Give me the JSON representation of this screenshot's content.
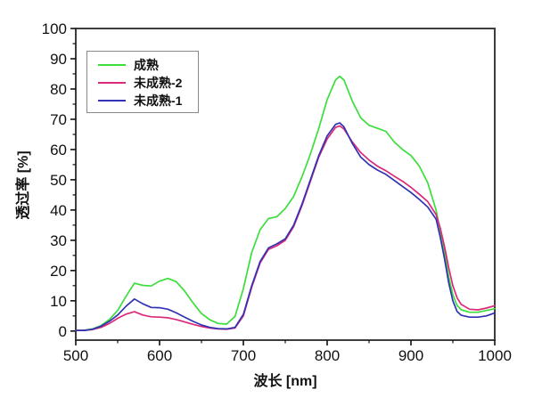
{
  "chart_data": {
    "type": "line",
    "title": "",
    "xlabel": "波长 [nm]",
    "ylabel": "透过率 [%]",
    "grid": false,
    "legend_position": "inside-top-left",
    "frame_color": "#3d3d3d",
    "tick_color": "#111111",
    "x_axis": {
      "min": 500,
      "max": 1000,
      "major_ticks": [
        500,
        600,
        700,
        800,
        900,
        1000
      ],
      "minor_ticks": [
        550,
        650,
        750,
        850,
        950
      ]
    },
    "y_axis": {
      "min": -3,
      "max": 100,
      "major_ticks": [
        0,
        10,
        20,
        30,
        40,
        50,
        60,
        70,
        80,
        90,
        100
      ],
      "minor_ticks": [
        5,
        15,
        25,
        35,
        45,
        55,
        65,
        75,
        85,
        95
      ]
    },
    "x": [
      500,
      510,
      520,
      530,
      540,
      550,
      560,
      570,
      580,
      590,
      600,
      610,
      620,
      630,
      640,
      650,
      660,
      670,
      680,
      690,
      700,
      710,
      720,
      730,
      740,
      750,
      760,
      770,
      780,
      790,
      800,
      810,
      815,
      820,
      830,
      840,
      850,
      860,
      870,
      880,
      890,
      900,
      910,
      920,
      930,
      935,
      940,
      945,
      950,
      955,
      960,
      970,
      980,
      990,
      1000
    ],
    "series": [
      {
        "name": "成熟",
        "color": "#3cde3c",
        "values": [
          0.3,
          0.3,
          0.7,
          1.8,
          3.8,
          6.8,
          11.5,
          15.8,
          15.1,
          14.9,
          16.5,
          17.4,
          16.3,
          13.2,
          9.3,
          5.8,
          3.7,
          2.5,
          2.3,
          4.8,
          14,
          26,
          33.5,
          37.2,
          37.8,
          40.5,
          44.5,
          51,
          58.5,
          67,
          76.5,
          83,
          84.2,
          83,
          76,
          70.5,
          68,
          67,
          66,
          62.5,
          60,
          58,
          54.5,
          49,
          40,
          33,
          26,
          18,
          12,
          8.5,
          7.0,
          6.2,
          6.2,
          6.8,
          7.4
        ]
      },
      {
        "name": "未成熟-2",
        "color": "#dc2878",
        "values": [
          0.2,
          0.2,
          0.5,
          1.2,
          2.5,
          4.2,
          5.6,
          6.4,
          5.3,
          4.7,
          4.6,
          4.4,
          3.8,
          3.0,
          2.2,
          1.5,
          1.0,
          0.7,
          0.6,
          1.0,
          5.0,
          14.5,
          22.5,
          27,
          28.2,
          30,
          34.5,
          41.5,
          49.5,
          57.5,
          63.5,
          67.3,
          67.8,
          66.8,
          62.5,
          59,
          56.5,
          54.5,
          53,
          51.2,
          49.5,
          47.5,
          45.2,
          42.8,
          38.5,
          34,
          28,
          21,
          15,
          11,
          8.8,
          7.2,
          7.0,
          7.6,
          8.4
        ]
      },
      {
        "name": "未成熟-1",
        "color": "#3232b4",
        "values": [
          0.2,
          0.2,
          0.6,
          1.6,
          3.2,
          5.3,
          8.2,
          10.6,
          9.0,
          7.8,
          7.7,
          7.2,
          6.0,
          4.6,
          3.2,
          2.0,
          1.2,
          0.8,
          0.7,
          1.2,
          5.5,
          15,
          23,
          27.5,
          28.8,
          30.5,
          35,
          42,
          50,
          58,
          64.5,
          68.3,
          68.8,
          67.5,
          62,
          57.5,
          55,
          53.2,
          51.8,
          49.8,
          47.8,
          45.8,
          43.5,
          41,
          37,
          31,
          24,
          16,
          10,
          6.5,
          5.2,
          4.6,
          4.6,
          5.0,
          6.0
        ]
      }
    ]
  }
}
